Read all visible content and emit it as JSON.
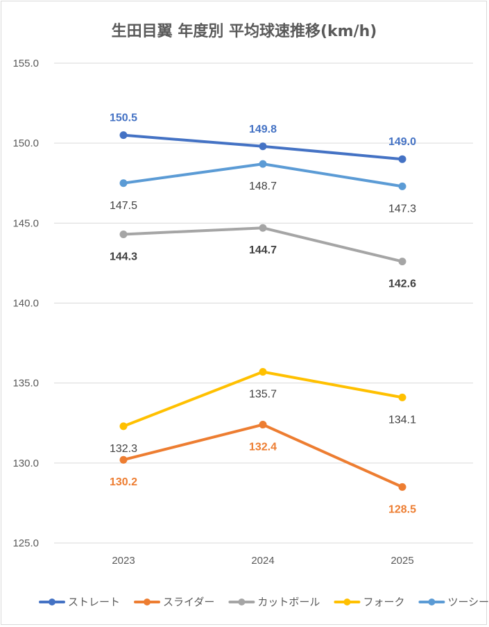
{
  "chart_data": {
    "type": "line",
    "title": "生田目翼 年度別 平均球速推移(km/h)",
    "categories": [
      "2023",
      "2024",
      "2025"
    ],
    "ylim": [
      125,
      155
    ],
    "yticks": [
      "125.0",
      "130.0",
      "135.0",
      "140.0",
      "145.0",
      "150.0",
      "155.0"
    ],
    "grid": true,
    "legend_position": "bottom",
    "series": [
      {
        "name": "ストレート",
        "color": "#4472C4",
        "values": [
          150.5,
          149.8,
          149.0
        ],
        "labels": [
          "150.5",
          "149.8",
          "149.0"
        ],
        "label_color": "#4472C4",
        "label_bold": true,
        "label_pos": "above"
      },
      {
        "name": "スライダー",
        "color": "#ED7D31",
        "values": [
          130.2,
          132.4,
          128.5
        ],
        "labels": [
          "130.2",
          "132.4",
          "128.5"
        ],
        "label_color": "#ED7D31",
        "label_bold": true,
        "label_pos": "below"
      },
      {
        "name": "カットボール",
        "color": "#A5A5A5",
        "values": [
          144.3,
          144.7,
          142.6
        ],
        "labels": [
          "144.3",
          "144.7",
          "142.6"
        ],
        "label_color": "#404040",
        "label_bold": true,
        "label_pos": "below"
      },
      {
        "name": "フォーク",
        "color": "#FFC000",
        "values": [
          132.3,
          135.7,
          134.1
        ],
        "labels": [
          "132.3",
          "135.7",
          "134.1"
        ],
        "label_color": "#404040",
        "label_bold": false,
        "label_pos": "below"
      },
      {
        "name": "ツーシーム",
        "color": "#5B9BD5",
        "values": [
          147.5,
          148.7,
          147.3
        ],
        "labels": [
          "147.5",
          "148.7",
          "147.3"
        ],
        "label_color": "#404040",
        "label_bold": false,
        "label_pos": "below"
      }
    ]
  }
}
